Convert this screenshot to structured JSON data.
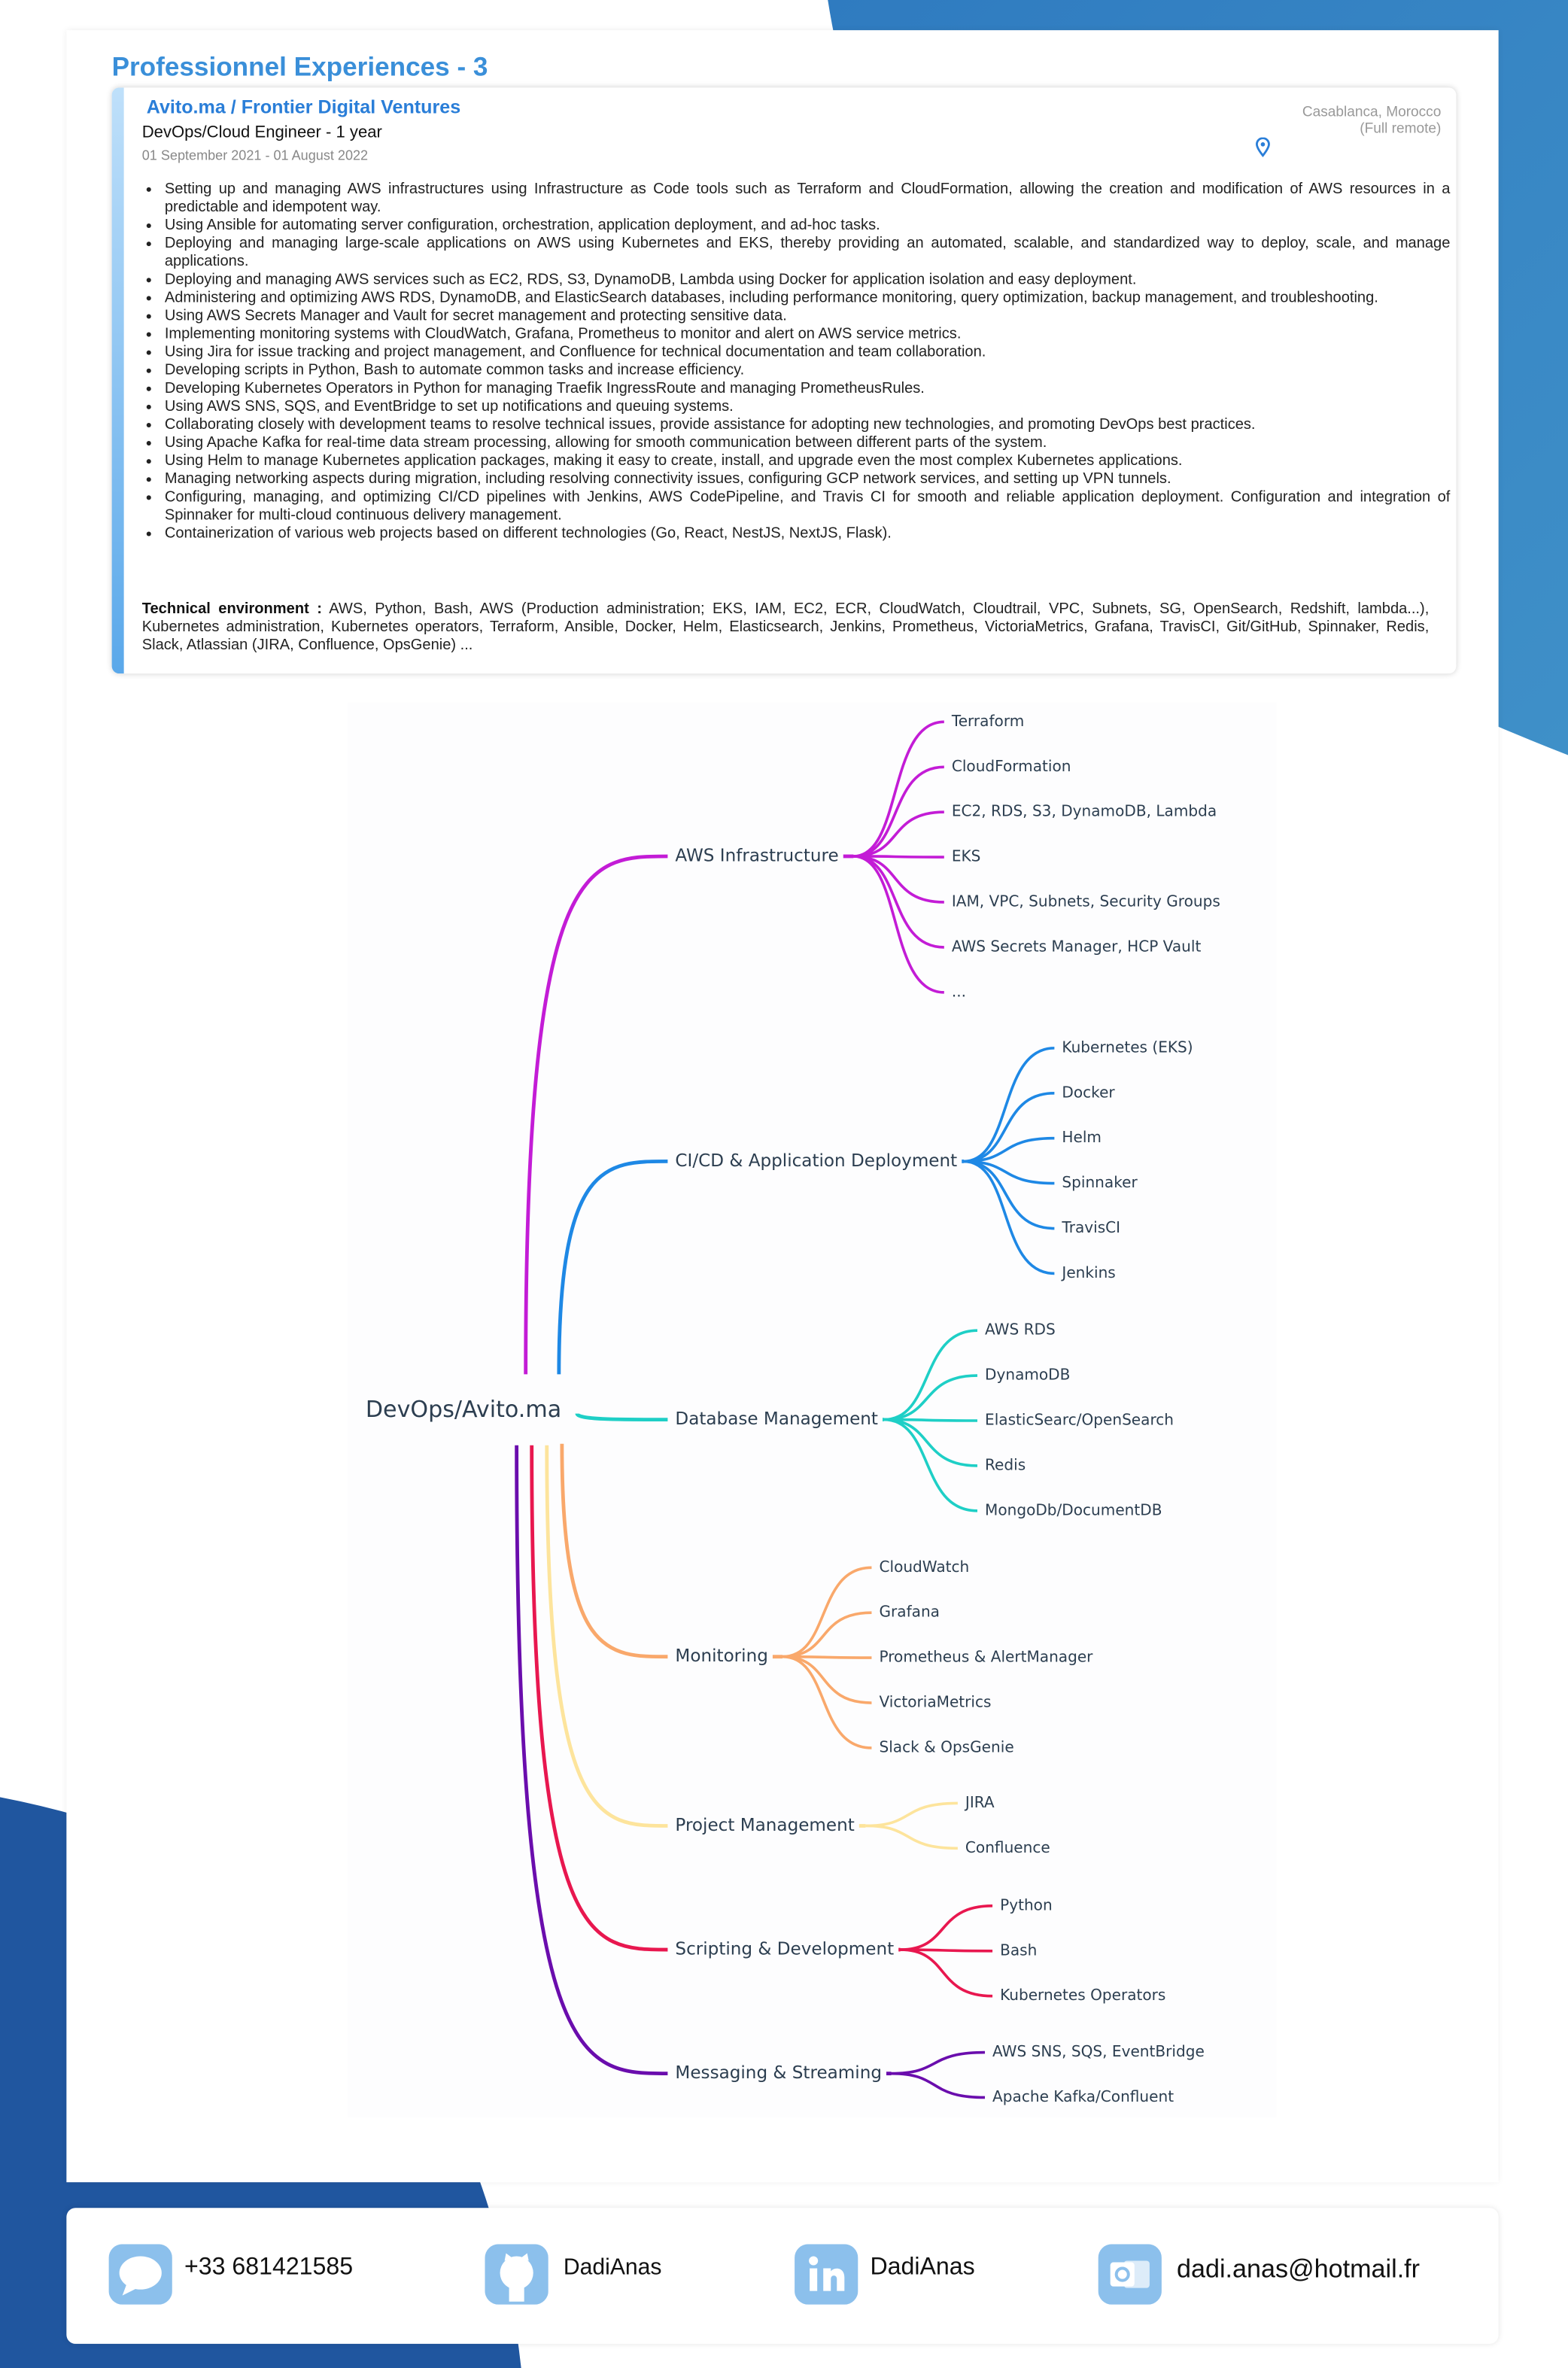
{
  "header": {
    "title": "Professionnel Experiences - 3"
  },
  "experience": {
    "company": "Avito.ma / Frontier Digital Ventures",
    "role": "DevOps/Cloud Engineer - 1 year",
    "dates": "01 September 2021 - 01 August 2022",
    "location": "Casablanca, Morocco",
    "mode": "(Full remote)",
    "bullets": [
      "Setting up and managing AWS infrastructures using Infrastructure as Code tools such as Terraform and CloudFormation, allowing the creation and modification of AWS resources in a predictable and idempotent way.",
      "Using Ansible for automating server configuration, orchestration, application deployment, and ad-hoc tasks.",
      "Deploying and managing large-scale applications on AWS using Kubernetes and EKS, thereby providing an automated, scalable, and standardized way to deploy, scale, and manage applications.",
      "Deploying and managing AWS services such as EC2, RDS, S3, DynamoDB, Lambda using Docker for application isolation and easy deployment.",
      "Administering and optimizing AWS RDS, DynamoDB, and ElasticSearch databases, including performance monitoring, query optimization, backup management, and troubleshooting.",
      "Using AWS Secrets Manager and Vault for secret management and protecting sensitive data.",
      "Implementing monitoring systems with CloudWatch, Grafana, Prometheus to monitor and alert on AWS service metrics.",
      "Using Jira for issue tracking and project management, and Confluence for technical documentation and team collaboration.",
      "Developing scripts in Python, Bash to automate common tasks and increase efficiency.",
      "Developing Kubernetes Operators in Python for managing Traefik IngressRoute and managing PrometheusRules.",
      "Using AWS SNS, SQS, and EventBridge to set up notifications and queuing systems.",
      "Collaborating closely with development teams to resolve technical issues, provide assistance for adopting new technologies, and promoting DevOps best practices.",
      "Using Apache Kafka for real-time data stream processing, allowing for smooth communication between different parts of the system.",
      "Using Helm to manage Kubernetes application packages, making it easy to create, install, and upgrade even the most complex Kubernetes applications.",
      "Managing networking aspects during migration, including resolving connectivity issues, configuring GCP network services, and setting up VPN tunnels.",
      "Configuring, managing, and optimizing CI/CD pipelines with Jenkins, AWS CodePipeline, and Travis CI for smooth and reliable application deployment. Configuration and integration of Spinnaker for multi-cloud continuous delivery management.",
      "Containerization of various web projects based on different technologies (Go, React, NestJS, NextJS, Flask)."
    ],
    "tech_label": "Technical environment :",
    "tech": "AWS, Python, Bash, AWS (Production administration; EKS, IAM, EC2, ECR, CloudWatch, Cloudtrail, VPC, Subnets, SG, OpenSearch, Redshift, lambda...), Kubernetes administration, Kubernetes operators, Terraform, Ansible, Docker, Helm, Elasticsearch, Jenkins, Prometheus, VictoriaMetrics, Grafana, TravisCI, Git/GitHub, Spinnaker, Redis, Slack, Atlassian (JIRA, Confluence, OpsGenie) ..."
  },
  "mindmap": {
    "root": "DevOps/Avito.ma",
    "branches": [
      {
        "label": "AWS Infrastructure",
        "children": [
          "Terraform",
          "CloudFormation",
          "EC2, RDS, S3, DynamoDB, Lambda",
          "EKS",
          "IAM, VPC, Subnets, Security Groups",
          "AWS Secrets Manager,  HCP Vault",
          "..."
        ]
      },
      {
        "label": "CI/CD & Application Deployment",
        "children": [
          "Kubernetes (EKS)",
          "Docker",
          "Helm",
          "Spinnaker",
          "TravisCI",
          "Jenkins"
        ]
      },
      {
        "label": "Database Management",
        "children": [
          "AWS RDS",
          "DynamoDB",
          "ElasticSearc/OpenSearch",
          "Redis",
          "MongoDb/DocumentDB"
        ]
      },
      {
        "label": "Monitoring",
        "children": [
          "CloudWatch",
          "Grafana",
          "Prometheus & AlertManager",
          "VictoriaMetrics",
          "Slack & OpsGenie"
        ]
      },
      {
        "label": "Project Management",
        "children": [
          "JIRA",
          "Confluence"
        ]
      },
      {
        "label": "Scripting & Development",
        "children": [
          "Python",
          "Bash",
          "Kubernetes Operators"
        ]
      },
      {
        "label": "Messaging & Streaming",
        "children": [
          "AWS SNS, SQS, EventBridge",
          "Apache Kafka/Confluent"
        ]
      }
    ]
  },
  "footer": {
    "phone": "+33 681421585",
    "github": "DadiAnas",
    "linkedin": "DadiAnas",
    "email": "dadi.anas@hotmail.fr"
  }
}
